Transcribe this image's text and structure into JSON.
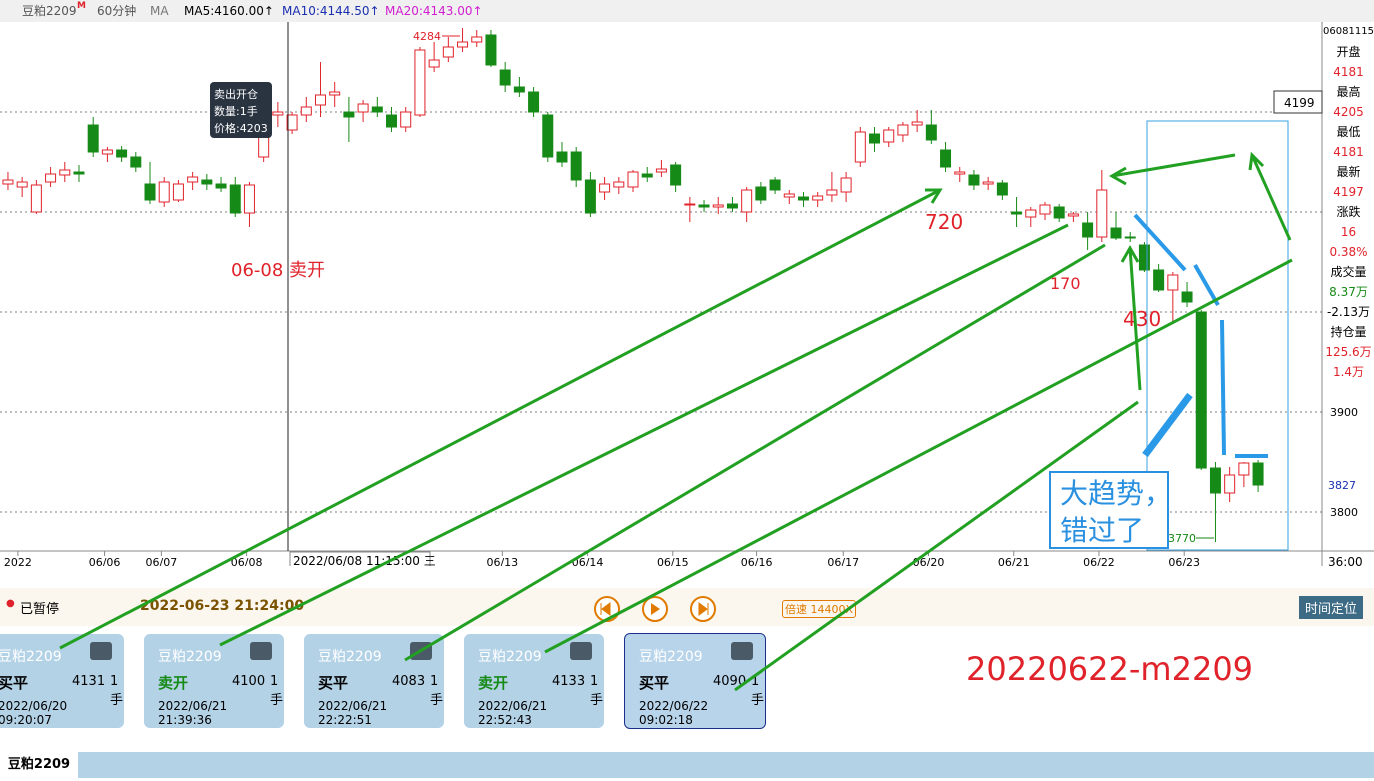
{
  "header": {
    "symbol": "豆粕2209",
    "flag": "M",
    "period": "60分钟",
    "indicator": "MA",
    "ma5": "MA5:4160.00↑",
    "ma10": "MA10:4144.50↑",
    "ma20": "MA20:4143.00↑"
  },
  "chart_data": {
    "type": "candlestick",
    "candles": [
      [
        4128,
        4140,
        4122,
        4132
      ],
      [
        4125,
        4135,
        4115,
        4130
      ],
      [
        4100,
        4132,
        4098,
        4127
      ],
      [
        4130,
        4145,
        4125,
        4138
      ],
      [
        4137,
        4150,
        4130,
        4142
      ],
      [
        4140,
        4147,
        4130,
        4138
      ],
      [
        4187,
        4195,
        4155,
        4160
      ],
      [
        4158,
        4165,
        4150,
        4162
      ],
      [
        4162,
        4166,
        4150,
        4155
      ],
      [
        4155,
        4160,
        4140,
        4145
      ],
      [
        4128,
        4150,
        4108,
        4112
      ],
      [
        4110,
        4135,
        4105,
        4130
      ],
      [
        4112,
        4132,
        4110,
        4128
      ],
      [
        4130,
        4140,
        4122,
        4135
      ],
      [
        4132,
        4138,
        4122,
        4128
      ],
      [
        4128,
        4135,
        4120,
        4124
      ],
      [
        4127,
        4135,
        4095,
        4099
      ],
      [
        4099,
        4130,
        4085,
        4127
      ],
      [
        4155,
        4200,
        4150,
        4197
      ],
      [
        4197,
        4210,
        4185,
        4200
      ],
      [
        4182,
        4200,
        4178,
        4197
      ],
      [
        4197,
        4215,
        4190,
        4205
      ],
      [
        4207,
        4250,
        4195,
        4217
      ],
      [
        4217,
        4230,
        4205,
        4220
      ],
      [
        4200,
        4215,
        4170,
        4195
      ],
      [
        4200,
        4212,
        4190,
        4208
      ],
      [
        4205,
        4215,
        4195,
        4200
      ],
      [
        4197,
        4205,
        4180,
        4185
      ],
      [
        4185,
        4205,
        4180,
        4200
      ],
      [
        4197,
        4265,
        4195,
        4262
      ],
      [
        4245,
        4270,
        4240,
        4252
      ],
      [
        4255,
        4275,
        4250,
        4265
      ],
      [
        4265,
        4284,
        4260,
        4270
      ],
      [
        4270,
        4282,
        4265,
        4275
      ],
      [
        4277,
        4282,
        4245,
        4247
      ],
      [
        4242,
        4250,
        4220,
        4227
      ],
      [
        4225,
        4235,
        4215,
        4220
      ],
      [
        4220,
        4225,
        4195,
        4200
      ],
      [
        4197,
        4200,
        4150,
        4155
      ],
      [
        4160,
        4170,
        4145,
        4150
      ],
      [
        4160,
        4165,
        4125,
        4132
      ],
      [
        4132,
        4140,
        4095,
        4099
      ],
      [
        4120,
        4135,
        4112,
        4128
      ],
      [
        4125,
        4135,
        4118,
        4130
      ],
      [
        4125,
        4142,
        4120,
        4140
      ],
      [
        4138,
        4145,
        4130,
        4135
      ],
      [
        4140,
        4152,
        4135,
        4143
      ],
      [
        4147,
        4150,
        4120,
        4127
      ],
      [
        4107,
        4115,
        4090,
        4108
      ],
      [
        4107,
        4112,
        4100,
        4105
      ],
      [
        4105,
        4115,
        4098,
        4107
      ],
      [
        4108,
        4115,
        4100,
        4104
      ],
      [
        4100,
        4125,
        4090,
        4122
      ],
      [
        4125,
        4130,
        4108,
        4112
      ],
      [
        4132,
        4135,
        4118,
        4122
      ],
      [
        4115,
        4122,
        4108,
        4118
      ],
      [
        4115,
        4120,
        4105,
        4112
      ],
      [
        4112,
        4120,
        4105,
        4116
      ],
      [
        4117,
        4140,
        4110,
        4122
      ],
      [
        4120,
        4140,
        4110,
        4134
      ],
      [
        4150,
        4185,
        4145,
        4180
      ],
      [
        4178,
        4185,
        4160,
        4169
      ],
      [
        4170,
        4185,
        4165,
        4182
      ],
      [
        4177,
        4190,
        4170,
        4187
      ],
      [
        4187,
        4202,
        4180,
        4190
      ],
      [
        4187,
        4202,
        4168,
        4172
      ],
      [
        4162,
        4170,
        4140,
        4145
      ],
      [
        4138,
        4145,
        4130,
        4140
      ],
      [
        4137,
        4142,
        4122,
        4127
      ],
      [
        4128,
        4135,
        4122,
        4130
      ],
      [
        4129,
        4132,
        4112,
        4117
      ],
      [
        4100,
        4115,
        4085,
        4098
      ],
      [
        4095,
        4105,
        4085,
        4102
      ],
      [
        4098,
        4110,
        4092,
        4107
      ],
      [
        4105,
        4108,
        4090,
        4094
      ],
      [
        4096,
        4100,
        4090,
        4098
      ],
      [
        4089,
        4100,
        4062,
        4075
      ],
      [
        4075,
        4142,
        4070,
        4122
      ],
      [
        4084,
        4100,
        4072,
        4074
      ],
      [
        4075,
        4080,
        4070,
        4074
      ],
      [
        4067,
        4070,
        4040,
        4042
      ],
      [
        4042,
        4048,
        4020,
        4022
      ],
      [
        4022,
        4040,
        3990,
        4037
      ],
      [
        4020,
        4030,
        4005,
        4010
      ],
      [
        4000,
        4002,
        3842,
        3844
      ],
      [
        3844,
        3850,
        3770,
        3819
      ],
      [
        3819,
        3845,
        3810,
        3837
      ],
      [
        3837,
        3850,
        3825,
        3849
      ],
      [
        3849,
        3852,
        3820,
        3827
      ]
    ],
    "up_color": "#e0222a",
    "down_color": "#168a16",
    "xticks": [
      {
        "value": 0.7,
        "label": "2022"
      },
      {
        "value": 6.8,
        "label": "06/06"
      },
      {
        "value": 10.8,
        "label": "06/07"
      },
      {
        "value": 16.8,
        "label": "06/08"
      },
      {
        "value": 34.8,
        "label": "06/13"
      },
      {
        "value": 40.8,
        "label": "06/14"
      },
      {
        "value": 46.8,
        "label": "06/15"
      },
      {
        "value": 52.7,
        "label": "06/16"
      },
      {
        "value": 58.8,
        "label": "06/17"
      },
      {
        "value": 64.8,
        "label": "06/20"
      },
      {
        "value": 70.8,
        "label": "06/21"
      },
      {
        "value": 76.8,
        "label": "06/22"
      },
      {
        "value": 82.8,
        "label": "06/23"
      }
    ],
    "xlim": [
      -0.56,
      92.5
    ],
    "ylim": [
      3762,
      4290
    ],
    "yticks": [
      {
        "value": 4200,
        "label": null
      },
      {
        "value": 4100,
        "label": null
      },
      {
        "value": 4000,
        "label": null
      },
      3900,
      3800
    ],
    "grid": true,
    "high": 4284,
    "low": 3770,
    "last_box": 4199,
    "last_price": 3827,
    "volume_axis": "36:00",
    "cursor": "2022/06/08 11:15:00 三",
    "tooltip": {
      "title": "卖出开仓",
      "qty": "数量:1手",
      "price": "价格:4203"
    },
    "notes": {
      "sell_open": "06-08 卖开",
      "d1": 720,
      "d2": 170,
      "d3": 430,
      "trend1": "大趋势，",
      "trend2": "错过了"
    }
  },
  "panel": {
    "time": "06081115",
    "rows": [
      [
        "开盘",
        "4181"
      ],
      [
        "最高",
        "4205"
      ],
      [
        "最低",
        "4181"
      ],
      [
        "最新",
        "4197"
      ],
      [
        "涨跌",
        "16",
        "0.38%"
      ],
      [
        "成交量",
        "8.37万",
        "-2.13万"
      ],
      [
        "持仓量",
        "125.6万",
        "1.4万"
      ]
    ]
  },
  "controls": {
    "status": "已暂停",
    "datetime": "2022-06-23 21:24:00",
    "speed": "倍速 14400X",
    "locate": "时间定位"
  },
  "cards": [
    {
      "symbol": "豆粕2209",
      "action": "买平",
      "price": "4131",
      "qty": "1手",
      "time": "2022/06/20 09:20:07"
    },
    {
      "symbol": "豆粕2209",
      "action": "卖开",
      "price": "4100",
      "qty": "1手",
      "time": "2022/06/21 21:39:36"
    },
    {
      "symbol": "豆粕2209",
      "action": "买平",
      "price": "4083",
      "qty": "1手",
      "time": "2022/06/21 22:22:51"
    },
    {
      "symbol": "豆粕2209",
      "action": "卖开",
      "price": "4133",
      "qty": "1手",
      "time": "2022/06/21 22:52:43"
    },
    {
      "symbol": "豆粕2209",
      "action": "买平",
      "price": "4090",
      "qty": "1手",
      "time": "2022/06/22 09:02:18"
    }
  ],
  "caption": "20220622-m2209",
  "tab": "豆粕2209"
}
